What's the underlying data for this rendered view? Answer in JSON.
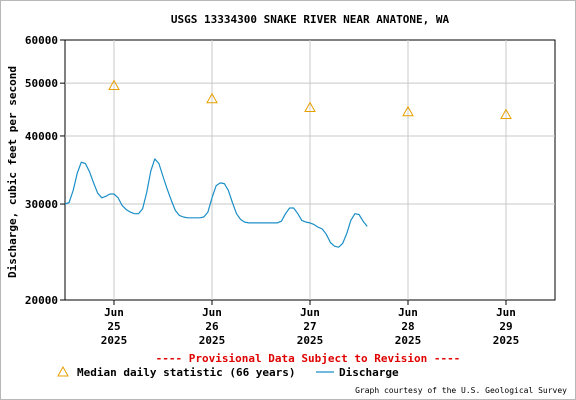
{
  "chart_data": {
    "type": "line",
    "title": "USGS 13334300 SNAKE RIVER NEAR ANATONE, WA",
    "ylabel": "Discharge, cubic feet per second",
    "xlabel": "",
    "y_scale": "log",
    "ylim": [
      20000,
      60000
    ],
    "y_ticks": [
      20000,
      30000,
      40000,
      50000,
      60000
    ],
    "y_tick_labels": [
      "20000",
      "30000",
      "40000",
      "50000",
      "60000"
    ],
    "xlim": [
      "2025-06-24T12:00",
      "2025-06-29T12:00"
    ],
    "x_ticks": [
      {
        "x": "2025-06-25",
        "label": [
          "Jun",
          "25",
          "2025"
        ]
      },
      {
        "x": "2025-06-26",
        "label": [
          "Jun",
          "26",
          "2025"
        ]
      },
      {
        "x": "2025-06-27",
        "label": [
          "Jun",
          "27",
          "2025"
        ]
      },
      {
        "x": "2025-06-28",
        "label": [
          "Jun",
          "28",
          "2025"
        ]
      },
      {
        "x": "2025-06-29",
        "label": [
          "Jun",
          "29",
          "2025"
        ]
      }
    ],
    "grid": true,
    "series": [
      {
        "name": "Discharge",
        "type": "line",
        "color": "#1b8fc7",
        "points": [
          [
            "2025-06-24T12:00",
            30000
          ],
          [
            "2025-06-24T13:00",
            30200
          ],
          [
            "2025-06-24T14:00",
            31800
          ],
          [
            "2025-06-24T15:00",
            34200
          ],
          [
            "2025-06-24T16:00",
            35800
          ],
          [
            "2025-06-24T17:00",
            35600
          ],
          [
            "2025-06-24T18:00",
            34400
          ],
          [
            "2025-06-24T19:00",
            32800
          ],
          [
            "2025-06-24T20:00",
            31400
          ],
          [
            "2025-06-24T21:00",
            30800
          ],
          [
            "2025-06-24T22:00",
            31000
          ],
          [
            "2025-06-24T23:00",
            31300
          ],
          [
            "2025-06-25T00:00",
            31300
          ],
          [
            "2025-06-25T01:00",
            30800
          ],
          [
            "2025-06-25T02:00",
            29800
          ],
          [
            "2025-06-25T03:00",
            29300
          ],
          [
            "2025-06-25T04:00",
            29000
          ],
          [
            "2025-06-25T05:00",
            28800
          ],
          [
            "2025-06-25T06:00",
            28800
          ],
          [
            "2025-06-25T07:00",
            29400
          ],
          [
            "2025-06-25T08:00",
            31500
          ],
          [
            "2025-06-25T09:00",
            34500
          ],
          [
            "2025-06-25T10:00",
            36300
          ],
          [
            "2025-06-25T11:00",
            35600
          ],
          [
            "2025-06-25T12:00",
            33700
          ],
          [
            "2025-06-25T13:00",
            32000
          ],
          [
            "2025-06-25T14:00",
            30500
          ],
          [
            "2025-06-25T15:00",
            29200
          ],
          [
            "2025-06-25T16:00",
            28600
          ],
          [
            "2025-06-25T17:00",
            28400
          ],
          [
            "2025-06-25T18:00",
            28300
          ],
          [
            "2025-06-25T19:00",
            28300
          ],
          [
            "2025-06-25T20:00",
            28300
          ],
          [
            "2025-06-25T21:00",
            28300
          ],
          [
            "2025-06-25T22:00",
            28400
          ],
          [
            "2025-06-25T23:00",
            29000
          ],
          [
            "2025-06-26T00:00",
            30800
          ],
          [
            "2025-06-26T01:00",
            32400
          ],
          [
            "2025-06-26T02:00",
            32800
          ],
          [
            "2025-06-26T03:00",
            32700
          ],
          [
            "2025-06-26T04:00",
            31800
          ],
          [
            "2025-06-26T05:00",
            30200
          ],
          [
            "2025-06-26T06:00",
            28800
          ],
          [
            "2025-06-26T07:00",
            28100
          ],
          [
            "2025-06-26T08:00",
            27800
          ],
          [
            "2025-06-26T09:00",
            27700
          ],
          [
            "2025-06-26T10:00",
            27700
          ],
          [
            "2025-06-26T11:00",
            27700
          ],
          [
            "2025-06-26T12:00",
            27700
          ],
          [
            "2025-06-26T13:00",
            27700
          ],
          [
            "2025-06-26T14:00",
            27700
          ],
          [
            "2025-06-26T15:00",
            27700
          ],
          [
            "2025-06-26T16:00",
            27700
          ],
          [
            "2025-06-26T17:00",
            27900
          ],
          [
            "2025-06-26T18:00",
            28800
          ],
          [
            "2025-06-26T19:00",
            29500
          ],
          [
            "2025-06-26T20:00",
            29500
          ],
          [
            "2025-06-26T21:00",
            28800
          ],
          [
            "2025-06-26T22:00",
            28000
          ],
          [
            "2025-06-26T23:00",
            27800
          ],
          [
            "2025-06-27T00:00",
            27700
          ],
          [
            "2025-06-27T01:00",
            27500
          ],
          [
            "2025-06-27T02:00",
            27200
          ],
          [
            "2025-06-27T03:00",
            27000
          ],
          [
            "2025-06-27T04:00",
            26400
          ],
          [
            "2025-06-27T05:00",
            25500
          ],
          [
            "2025-06-27T06:00",
            25100
          ],
          [
            "2025-06-27T07:00",
            25000
          ],
          [
            "2025-06-27T08:00",
            25400
          ],
          [
            "2025-06-27T09:00",
            26500
          ],
          [
            "2025-06-27T10:00",
            28000
          ],
          [
            "2025-06-27T11:00",
            28800
          ],
          [
            "2025-06-27T12:00",
            28700
          ],
          [
            "2025-06-27T13:00",
            27900
          ],
          [
            "2025-06-27T14:00",
            27300
          ]
        ]
      },
      {
        "name": "Median daily statistic (66 years)",
        "type": "scatter",
        "marker": "triangle",
        "color": "#e8a000",
        "points": [
          [
            "2025-06-25T00:00",
            49500
          ],
          [
            "2025-06-26T00:00",
            46800
          ],
          [
            "2025-06-27T00:00",
            45100
          ],
          [
            "2025-06-28T00:00",
            44300
          ],
          [
            "2025-06-29T00:00",
            43800
          ]
        ]
      }
    ],
    "annotation": "---- Provisional Data Subject to Revision ----",
    "annotation_color": "#e00000",
    "credit": "Graph courtesy of the U.S. Geological Survey"
  }
}
